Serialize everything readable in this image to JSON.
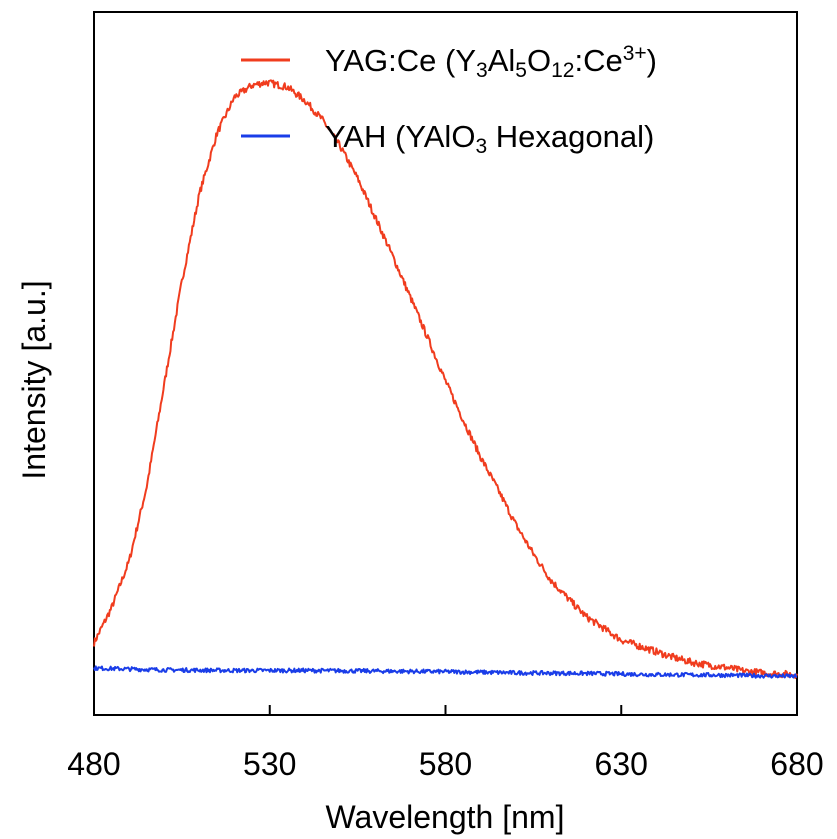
{
  "chart_data": {
    "type": "line",
    "title": "",
    "xlabel": "Wavelength [nm]",
    "ylabel": "Intensity [a.u.]",
    "xlim": [
      480,
      680
    ],
    "ylim": [
      -0.08,
      1.12
    ],
    "xticks": [
      480,
      530,
      580,
      630,
      680
    ],
    "xtick_labels": [
      "480",
      "530",
      "580",
      "630",
      "680"
    ],
    "yticks_shown": false,
    "grid": false,
    "legend": {
      "position": "top-right"
    },
    "series": [
      {
        "name": "YAG:Ce (Y3Al5O12:Ce3+)",
        "legend_parts": [
          {
            "t": "YAG:Ce (Y"
          },
          {
            "t": "3",
            "sub": true
          },
          {
            "t": "Al"
          },
          {
            "t": "5",
            "sub": true
          },
          {
            "t": "O"
          },
          {
            "t": "12",
            "sub": true
          },
          {
            "t": ":Ce"
          },
          {
            "t": "3+",
            "sup": true
          },
          {
            "t": ")"
          }
        ],
        "color": "#f03c1e",
        "x": [
          480,
          485,
          490,
          495,
          500,
          505,
          510,
          515,
          520,
          525,
          529,
          535,
          540,
          545,
          550,
          555,
          560,
          565,
          570,
          575,
          580,
          585,
          590,
          595,
          600,
          605,
          610,
          615,
          620,
          625,
          630,
          635,
          640,
          645,
          650,
          655,
          660,
          665,
          670,
          675,
          680
        ],
        "y": [
          0.043,
          0.103,
          0.183,
          0.31,
          0.485,
          0.66,
          0.81,
          0.913,
          0.975,
          0.995,
          1.0,
          0.992,
          0.969,
          0.936,
          0.891,
          0.836,
          0.77,
          0.703,
          0.633,
          0.563,
          0.49,
          0.424,
          0.36,
          0.304,
          0.245,
          0.195,
          0.15,
          0.118,
          0.088,
          0.068,
          0.048,
          0.038,
          0.028,
          0.018,
          0.01,
          0.005,
          0.001,
          -0.005,
          -0.008,
          -0.01,
          -0.011
        ]
      },
      {
        "name": "YAH (YAlO3 Hexagonal)",
        "legend_parts": [
          {
            "t": "YAH (YAlO"
          },
          {
            "t": "3",
            "sub": true
          },
          {
            "t": " Hexagonal)"
          }
        ],
        "color": "#1a3de8",
        "x": [
          480,
          500,
          520,
          540,
          560,
          580,
          600,
          620,
          640,
          660,
          680
        ],
        "y": [
          0.0,
          -0.003,
          -0.004,
          -0.004,
          -0.005,
          -0.006,
          -0.008,
          -0.009,
          -0.011,
          -0.012,
          -0.014
        ]
      }
    ]
  }
}
